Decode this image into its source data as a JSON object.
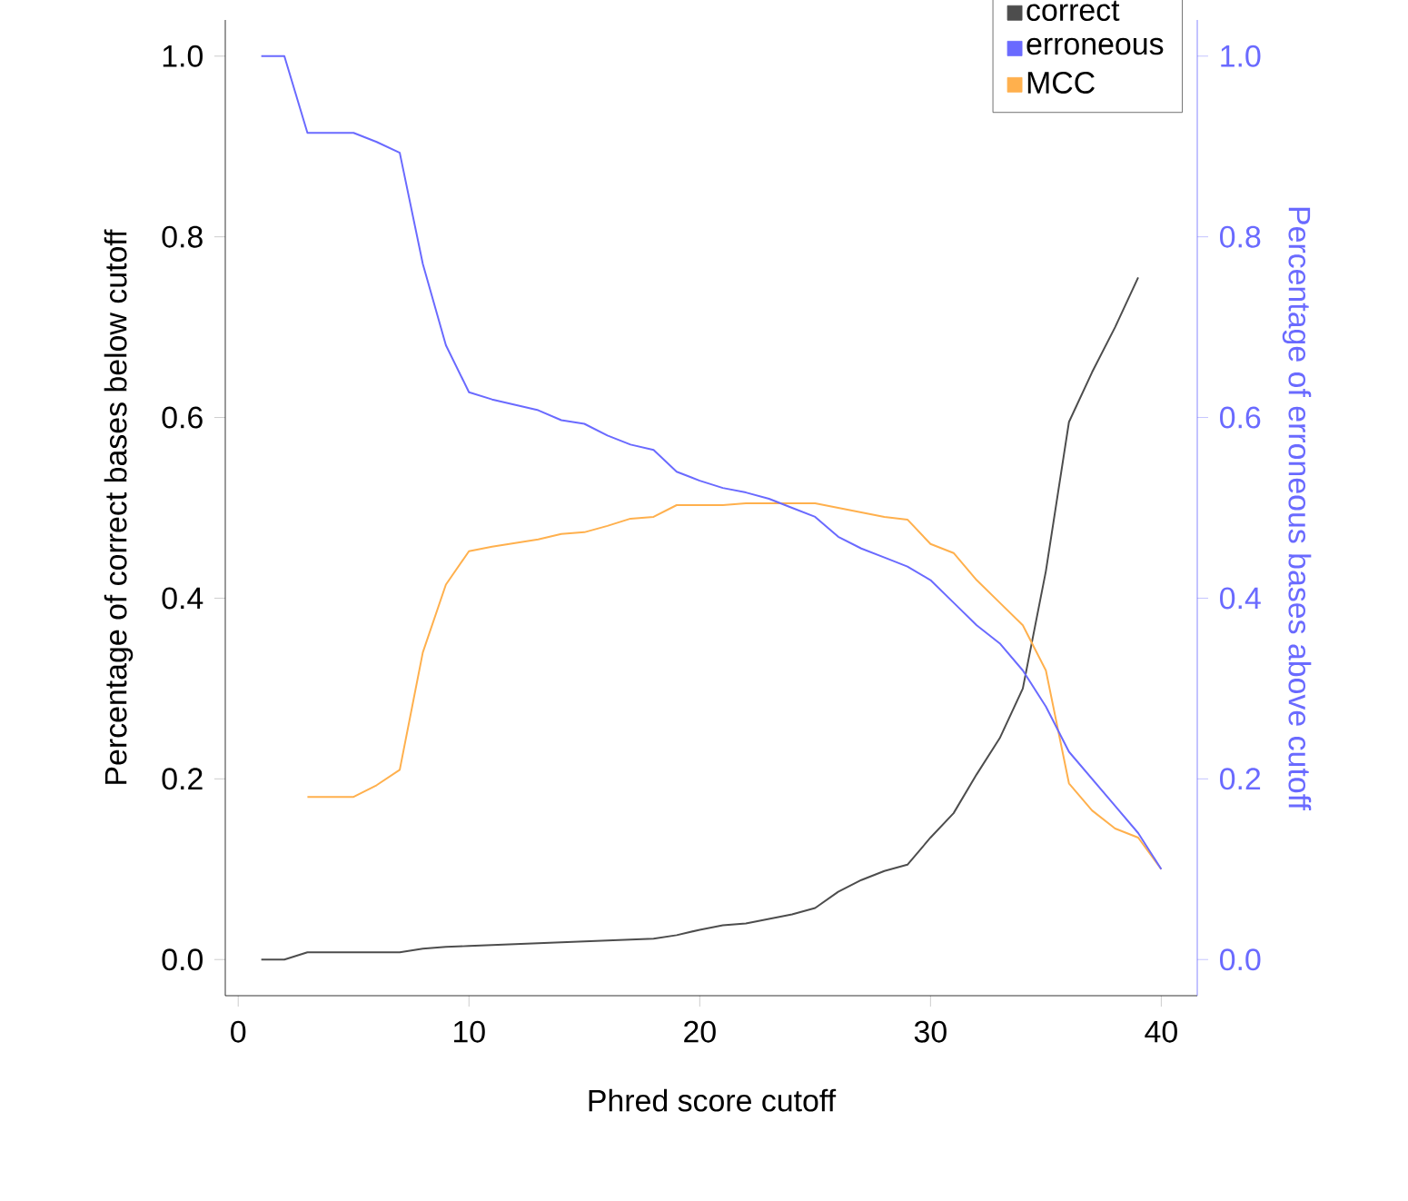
{
  "chart_data": {
    "type": "line",
    "xlabel": "Phred score cutoff",
    "ylabel": "Percentage of correct bases below cutoff",
    "y2label": "Percentage of erroneous bases above cutoff",
    "x": [
      1,
      2,
      3,
      4,
      5,
      6,
      7,
      8,
      9,
      10,
      11,
      12,
      13,
      14,
      15,
      16,
      17,
      18,
      19,
      20,
      21,
      22,
      23,
      24,
      25,
      26,
      27,
      28,
      29,
      30,
      31,
      32,
      33,
      34,
      35,
      36,
      37,
      38,
      39,
      40
    ],
    "series": [
      {
        "name": "correct",
        "color": "#4d4d4d",
        "axis": "y",
        "values": [
          0,
          0,
          0.008,
          0.008,
          0.008,
          0.008,
          0.008,
          0.012,
          0.014,
          0.015,
          0.016,
          0.017,
          0.018,
          0.019,
          0.02,
          0.021,
          0.022,
          0.023,
          0.027,
          0.033,
          0.038,
          0.04,
          0.045,
          0.05,
          0.057,
          0.075,
          0.088,
          0.098,
          0.105,
          0.135,
          0.162,
          0.205,
          0.245,
          0.3,
          0.43,
          0.595,
          0.65,
          0.7,
          0.755,
          null
        ]
      },
      {
        "name": "erroneous",
        "color": "#6a6aff",
        "axis": "y2",
        "values": [
          1.0,
          1.0,
          0.915,
          0.915,
          0.915,
          0.905,
          0.893,
          0.77,
          0.68,
          0.628,
          0.62,
          0.614,
          0.608,
          0.597,
          0.593,
          0.58,
          0.57,
          0.564,
          0.54,
          0.53,
          0.522,
          0.517,
          0.51,
          0.5,
          0.49,
          0.468,
          0.455,
          0.445,
          0.435,
          0.42,
          0.395,
          0.37,
          0.35,
          0.32,
          0.28,
          0.23,
          0.2,
          0.17,
          0.14,
          0.1
        ]
      },
      {
        "name": "MCC",
        "color": "#ffb04d",
        "axis": "y",
        "values": [
          null,
          null,
          0.18,
          0.18,
          0.18,
          0.193,
          0.21,
          0.34,
          0.415,
          0.452,
          0.457,
          0.461,
          0.465,
          0.471,
          0.473,
          0.48,
          0.488,
          0.49,
          0.503,
          0.503,
          0.503,
          0.505,
          0.505,
          0.505,
          0.505,
          0.5,
          0.495,
          0.49,
          0.487,
          0.46,
          0.45,
          0.42,
          0.395,
          0.37,
          0.32,
          0.195,
          0.165,
          0.145,
          0.135,
          0.1
        ]
      }
    ],
    "xlim": [
      -0.56,
      41.56
    ],
    "xticks": [
      0,
      10,
      20,
      30,
      40
    ],
    "ylim": [
      -0.04,
      1.04
    ],
    "yticks": [
      {
        "value": 0,
        "label": "0.0"
      },
      0.2,
      0.4,
      0.6,
      0.8,
      {
        "value": 1,
        "label": "1.0"
      }
    ],
    "y2lim": [
      -0.04,
      1.04
    ],
    "y2ticks": [
      {
        "value": 0,
        "label": "0.0"
      },
      0.2,
      0.4,
      0.6,
      0.8,
      {
        "value": 1,
        "label": "1.0"
      }
    ],
    "legend": "top right",
    "line_style": "solid",
    "grid": false
  }
}
